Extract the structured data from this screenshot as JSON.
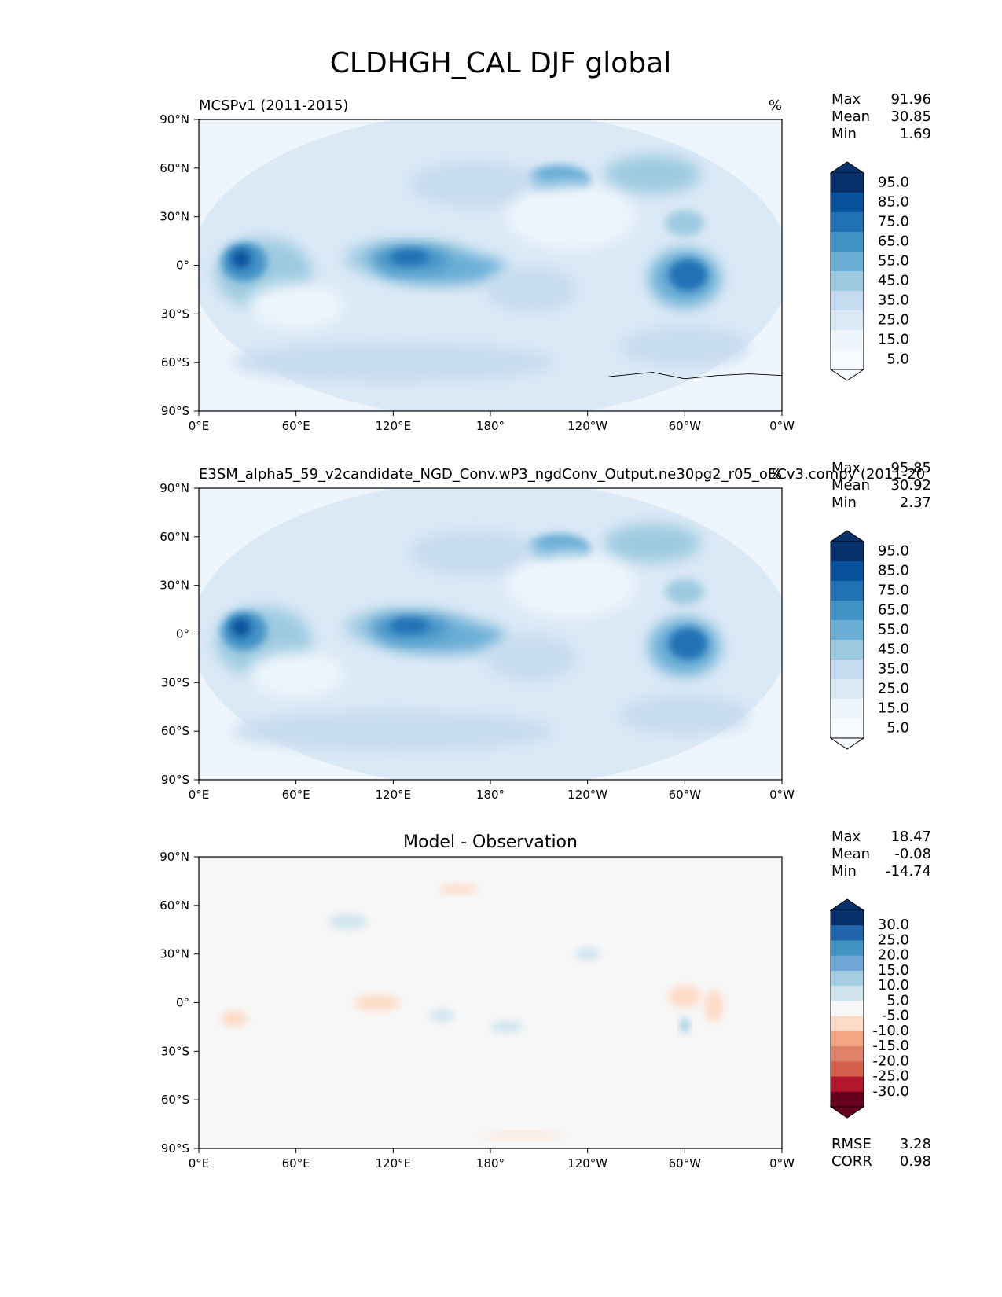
{
  "figure": {
    "title": "CLDHGH_CAL DJF global"
  },
  "axes": {
    "lon_ticks": [
      "0°E",
      "60°E",
      "120°E",
      "180°",
      "120°W",
      "60°W",
      "0°W"
    ],
    "lat_ticks": [
      "90°N",
      "60°N",
      "30°N",
      "0°",
      "30°S",
      "60°S",
      "90°S"
    ]
  },
  "panels": [
    {
      "left_title": "MCSPv1 (2011-2015)",
      "center_title": "",
      "right_title": "%",
      "stats": [
        {
          "label": "Max",
          "value": "91.96"
        },
        {
          "label": "Mean",
          "value": "30.85"
        },
        {
          "label": "Min",
          "value": "1.69"
        }
      ],
      "colorbar": {
        "labels": [
          "95.0",
          "85.0",
          "75.0",
          "65.0",
          "55.0",
          "45.0",
          "35.0",
          "25.0",
          "15.0",
          "5.0"
        ],
        "colors": [
          "#08306b",
          "#08519c",
          "#2171b5",
          "#4292c6",
          "#6baed6",
          "#9ecae1",
          "#c6dbef",
          "#dbe9f6",
          "#eef5fc",
          "#f7fbff"
        ],
        "extend_top": "#08306b",
        "extend_bottom": "#f7fbff"
      },
      "footer": []
    },
    {
      "left_title": "E3SM_alpha5_59_v2candidate_NGD_Conv.wP3_ngdConv_Output.ne30pg2_r05_oECv3.compy (2011-20",
      "center_title": "",
      "right_title": "%",
      "stats": [
        {
          "label": "Max",
          "value": "95.85"
        },
        {
          "label": "Mean",
          "value": "30.92"
        },
        {
          "label": "Min",
          "value": "2.37"
        }
      ],
      "colorbar": {
        "labels": [
          "95.0",
          "85.0",
          "75.0",
          "65.0",
          "55.0",
          "45.0",
          "35.0",
          "25.0",
          "15.0",
          "5.0"
        ],
        "colors": [
          "#08306b",
          "#08519c",
          "#2171b5",
          "#4292c6",
          "#6baed6",
          "#9ecae1",
          "#c6dbef",
          "#dbe9f6",
          "#eef5fc",
          "#f7fbff"
        ],
        "extend_top": "#08306b",
        "extend_bottom": "#f7fbff"
      },
      "footer": []
    },
    {
      "left_title": "",
      "center_title": "Model - Observation",
      "right_title": "",
      "stats": [
        {
          "label": "Max",
          "value": "18.47"
        },
        {
          "label": "Mean",
          "value": "-0.08"
        },
        {
          "label": "Min",
          "value": "-14.74"
        }
      ],
      "colorbar": {
        "labels": [
          "30.0",
          "25.0",
          "20.0",
          "15.0",
          "10.0",
          "5.0",
          "-5.0",
          "-10.0",
          "-15.0",
          "-20.0",
          "-25.0",
          "-30.0"
        ],
        "colors": [
          "#08306b",
          "#2166ac",
          "#4393c3",
          "#6fa8d6",
          "#a6cee3",
          "#d1e5f0",
          "#f7f7f7",
          "#fddbc7",
          "#f4a582",
          "#e0826a",
          "#d6604d",
          "#b2182b",
          "#67001f"
        ],
        "extend_top": "#08306b",
        "extend_bottom": "#67001f"
      },
      "footer": [
        {
          "label": "RMSE",
          "value": "3.28"
        },
        {
          "label": "CORR",
          "value": "0.98"
        }
      ]
    }
  ]
}
